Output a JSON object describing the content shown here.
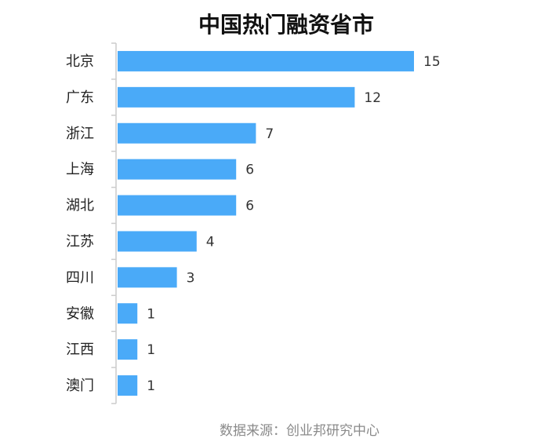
{
  "chart_data": {
    "type": "bar",
    "orientation": "horizontal",
    "title": "中国热门融资省市",
    "categories": [
      "北京",
      "广东",
      "浙江",
      "上海",
      "湖北",
      "江苏",
      "四川",
      "安徽",
      "江西",
      "澳门"
    ],
    "values": [
      15,
      12,
      7,
      6,
      6,
      4,
      3,
      1,
      1,
      1
    ],
    "xlim": [
      0,
      15
    ],
    "grid": false,
    "legend": "none",
    "source": "数据来源：创业邦研究中心",
    "bar_color": "#4aaaf8",
    "axis_color": "#cccccc"
  }
}
